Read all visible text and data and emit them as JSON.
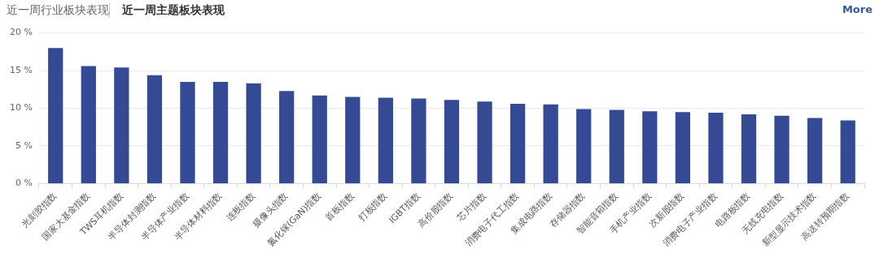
{
  "chart_data": {
    "type": "bar",
    "subtitle": "近一周行业板块表现",
    "title": "近一周主题板块表现",
    "annotations": [
      "More"
    ],
    "categories": [
      "光刻胶指数",
      "国家大基金指数",
      "TWS耳机指数",
      "半导体封测指数",
      "半导体产业指数",
      "半导体材料指数",
      "连板指数",
      "摄像头指数",
      "氮化镓(GaN)指数",
      "首板指数",
      "打板指数",
      "IGBT指数",
      "高价股指数",
      "芯片指数",
      "消费电子代工指数",
      "集成电路指数",
      "存储器指数",
      "智能音箱指数",
      "手机产业指数",
      "次新股指数",
      "消费电子产业指数",
      "电路板指数",
      "无线充电指数",
      "新型显示技术指数",
      "高送转预期指数"
    ],
    "values": [
      18.0,
      15.6,
      15.4,
      14.4,
      13.5,
      13.5,
      13.3,
      12.3,
      11.7,
      11.5,
      11.4,
      11.3,
      11.1,
      10.9,
      10.6,
      10.5,
      9.9,
      9.8,
      9.6,
      9.5,
      9.4,
      9.2,
      9.0,
      8.7,
      8.4
    ],
    "color": "#344a94",
    "ylim": [
      0,
      20
    ],
    "yticks": [
      {
        "value": 0,
        "label": "0 %"
      },
      {
        "value": 5,
        "label": "5 %"
      },
      {
        "value": 10,
        "label": "10 %"
      },
      {
        "value": 15,
        "label": "15 %"
      },
      {
        "value": 20,
        "label": "20 %"
      }
    ],
    "grid": "y",
    "legend": false
  }
}
